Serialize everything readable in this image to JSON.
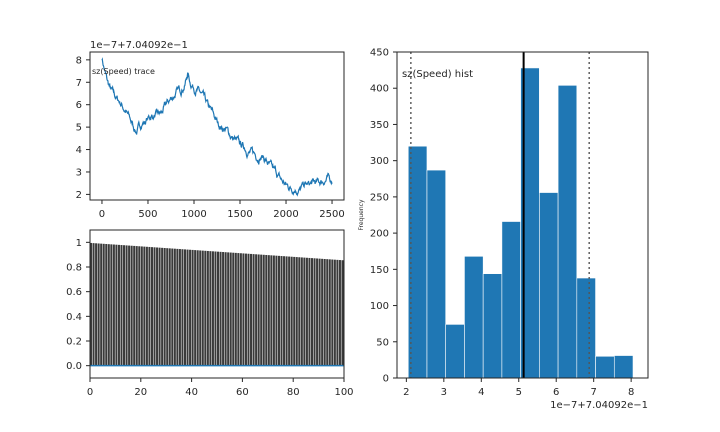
{
  "chart_data": [
    {
      "type": "line",
      "panel": "trace",
      "title": "sz(Speed) trace",
      "offset_label": "1e−7+7.04092e−1",
      "xlim": [
        -130,
        2630
      ],
      "ylim": [
        1.75,
        8.35
      ],
      "xticks": [
        0,
        500,
        1000,
        1500,
        2000,
        2500
      ],
      "yticks": [
        2,
        3,
        4,
        5,
        6,
        7,
        8
      ],
      "color": "#1f77b4",
      "anchors_x": [
        0,
        30,
        60,
        100,
        150,
        200,
        260,
        320,
        360,
        380,
        420,
        480,
        540,
        600,
        650,
        700,
        760,
        800,
        860,
        900,
        930,
        960,
        1000,
        1050,
        1100,
        1150,
        1200,
        1250,
        1300,
        1350,
        1400,
        1450,
        1500,
        1550,
        1600,
        1650,
        1700,
        1750,
        1800,
        1850,
        1900,
        1950,
        2000,
        2050,
        2100,
        2150,
        2200,
        2250,
        2300,
        2350,
        2400,
        2450,
        2500
      ],
      "anchors_y": [
        8.1,
        7.5,
        7.0,
        6.6,
        6.3,
        6.1,
        5.7,
        5.2,
        4.9,
        4.8,
        5.1,
        5.3,
        5.5,
        5.5,
        5.6,
        6.0,
        6.3,
        6.5,
        6.7,
        6.9,
        7.4,
        7.0,
        6.8,
        6.6,
        6.3,
        5.9,
        5.6,
        5.2,
        5.0,
        4.9,
        4.6,
        4.4,
        4.2,
        4.1,
        3.9,
        3.8,
        3.7,
        3.7,
        3.4,
        3.1,
        2.9,
        2.6,
        2.4,
        2.3,
        2.3,
        2.2,
        2.4,
        2.4,
        2.5,
        2.5,
        2.6,
        2.7,
        2.6
      ],
      "n_points": 2500
    },
    {
      "type": "bar",
      "panel": "autocorrelation",
      "xlim": [
        0,
        100
      ],
      "ylim": [
        -0.1,
        1.1
      ],
      "xticks": [
        0,
        20,
        40,
        60,
        80,
        100
      ],
      "yticks": [
        0.0,
        0.2,
        0.4,
        0.6,
        0.8,
        1.0
      ],
      "bar_color": "#3a3a3a",
      "baseline_color": "#1f77b4",
      "lag_start": 1,
      "lag_end": 100,
      "value_start": 0.995,
      "value_end": 0.855
    },
    {
      "type": "bar",
      "panel": "histogram",
      "title": "sz(Speed) hist",
      "ylabel": "Frequency",
      "offset_label": "1e−7+7.04092e−1",
      "xlim": [
        1.75,
        8.45
      ],
      "ylim": [
        0,
        450
      ],
      "xticks": [
        2,
        3,
        4,
        5,
        6,
        7,
        8
      ],
      "yticks": [
        0,
        50,
        100,
        150,
        200,
        250,
        300,
        350,
        400,
        450
      ],
      "bin_edges": [
        2.05,
        2.55,
        3.05,
        3.55,
        4.05,
        4.55,
        5.05,
        5.55,
        6.05,
        6.55,
        7.05,
        7.55,
        8.05
      ],
      "counts": [
        320,
        287,
        74,
        168,
        144,
        216,
        428,
        256,
        404,
        138,
        30,
        31
      ],
      "mean": 5.13,
      "hpd": [
        2.12,
        6.88
      ],
      "bar_color": "#1f77b4"
    }
  ]
}
